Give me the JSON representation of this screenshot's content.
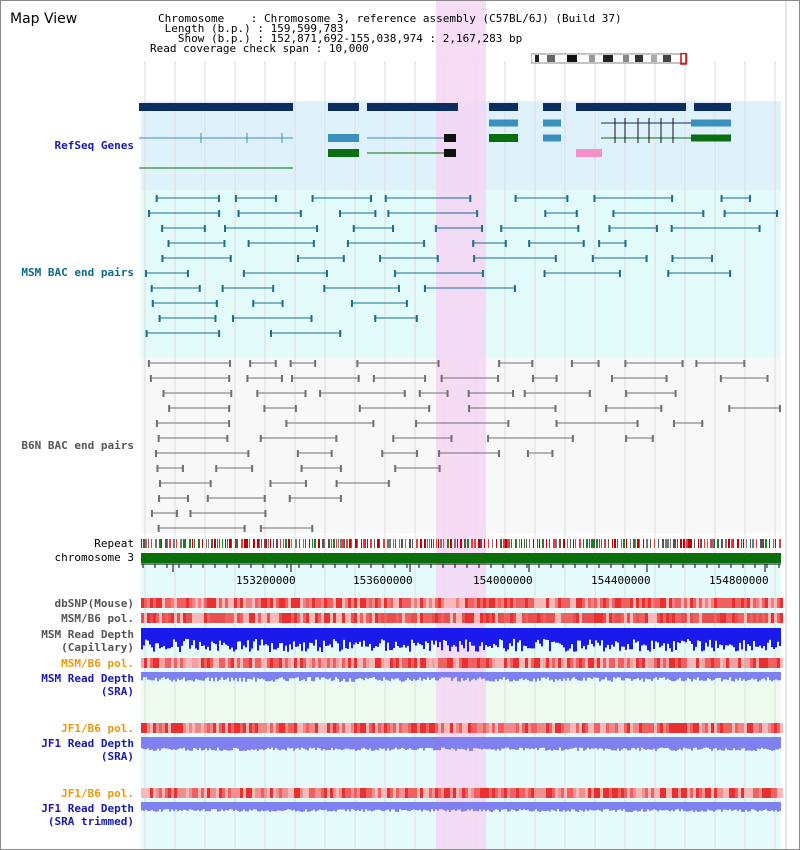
{
  "header": {
    "title": "Map View",
    "chromosome_label": "Chromosome    ",
    "chromosome_value": "Chromosome 3, reference assembly (C57BL/6J) (Build 37)",
    "length_label": " Length (b.p.) ",
    "length_value": "159,599,783",
    "show_label": "   Show (b.p.) ",
    "show_value": "152,871,692-155,038,974 : 2,167,283 bp",
    "coverage_label": "Read coverage check span",
    "coverage_value": "10,000"
  },
  "tracks": {
    "refseq": "RefSeq Genes",
    "msm_bac": "MSM BAC end pairs",
    "b6n_bac": "B6N BAC end pairs",
    "repeat": "Repeat",
    "chromosome": "chromosome 3",
    "dbsnp": "dbSNP(Mouse)",
    "msm_pol_1": "MSM/B6 pol.",
    "msm_depth_cap_1": "MSM Read Depth",
    "msm_depth_cap_2": "(Capillary)",
    "msm_pol_2": "MSM/B6 pol.",
    "msm_depth_sra_1": "MSM Read Depth",
    "msm_depth_sra_2": "(SRA)",
    "jf1_pol_1": "JF1/B6 pol.",
    "jf1_depth_sra_1": "JF1 Read Depth",
    "jf1_depth_sra_2": "(SRA)",
    "jf1_pol_2": "JF1/B6 pol.",
    "jf1_depth_trim_1": "JF1 Read Depth",
    "jf1_depth_trim_2": "(SRA trimmed)"
  },
  "axis": {
    "ticks": [
      "153200000",
      "153600000",
      "154000000",
      "154400000",
      "154800000"
    ]
  },
  "colors": {
    "refseq_bg": "#dff2fb",
    "msm_bg": "#e3fbfb",
    "highlight": "#f5d6f3",
    "gene_navy": "#0c2d5e",
    "gene_teal": "#3b8fbf",
    "gene_green": "#0a6e12",
    "bac_teal": "#1a6e8e",
    "bac_gray": "#707070",
    "chromosome_green": "#0a6e0a",
    "depth_blue": "#1a1aee",
    "depth_light": "#8080f0",
    "label_blue": "#1a1aaa",
    "label_teal": "#0a6a8a",
    "label_orange": "#e89a0a"
  }
}
